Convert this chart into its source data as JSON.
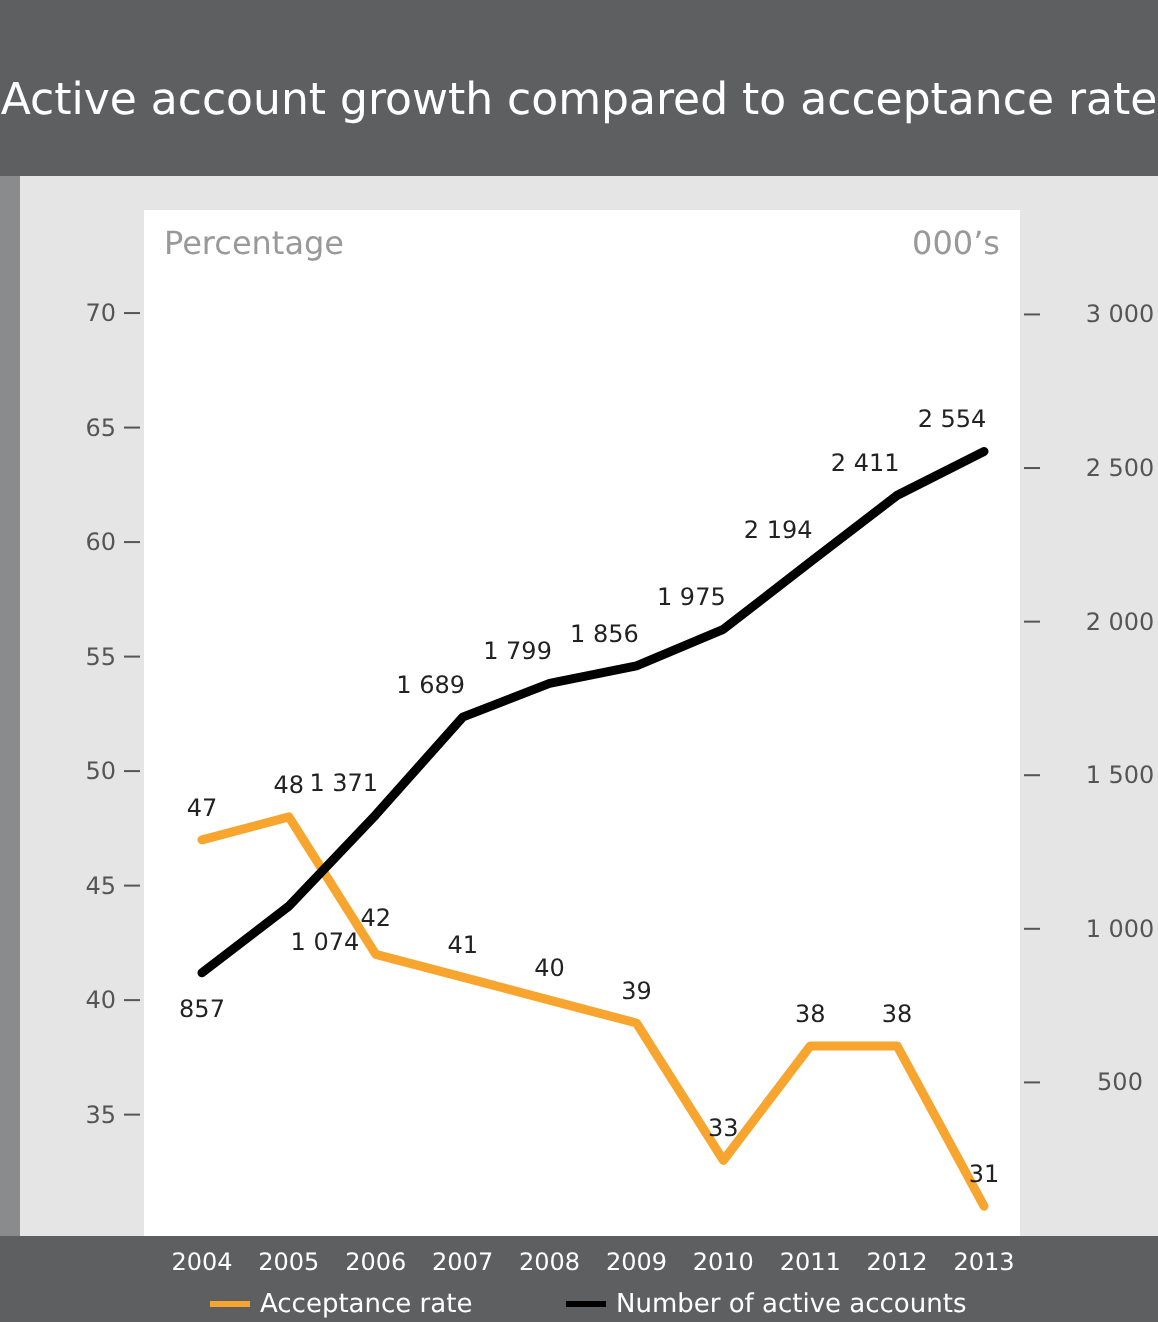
{
  "chart_data": {
    "type": "line",
    "title": "Active account growth compared to acceptance rate",
    "ylabel": "Percentage",
    "y2label": "000’s",
    "categories": [
      "2004",
      "2005",
      "2006",
      "2007",
      "2008",
      "2009",
      "2010",
      "2011",
      "2012",
      "2013"
    ],
    "series": [
      {
        "name": "Acceptance rate",
        "color": "#f7a52f",
        "values": [
          47,
          48,
          42,
          41,
          40,
          39,
          33,
          38,
          38,
          31
        ],
        "value_labels": [
          "47",
          "48",
          "42",
          "41",
          "40",
          "39",
          "33",
          "38",
          "38",
          "31"
        ]
      },
      {
        "name": "Number of active accounts",
        "color": "#000000",
        "axis": "y2",
        "values": [
          857,
          1074,
          1371,
          1689,
          1799,
          1856,
          1975,
          2194,
          2411,
          2554
        ],
        "value_labels": [
          "857",
          "1 074",
          "1 371",
          "1 689",
          "1 799",
          "1 856",
          "1 975",
          "2 194",
          "2 411",
          "2 554"
        ]
      }
    ],
    "ylim": [
      29.7,
      74.5
    ],
    "yticks": [
      35,
      40,
      45,
      50,
      55,
      60,
      65,
      70
    ],
    "y2lim": [
      0,
      3340
    ],
    "y2ticks": [
      500,
      {
        "value": 1000,
        "label": "1 000"
      },
      {
        "value": 1500,
        "label": "1 500"
      },
      {
        "value": 2000,
        "label": "2 000"
      },
      {
        "value": 2500,
        "label": "2 500"
      },
      {
        "value": 3000,
        "label": "3 000"
      }
    ],
    "grid": false,
    "legend": "bottom",
    "marker": "none",
    "line_style": "solid"
  }
}
